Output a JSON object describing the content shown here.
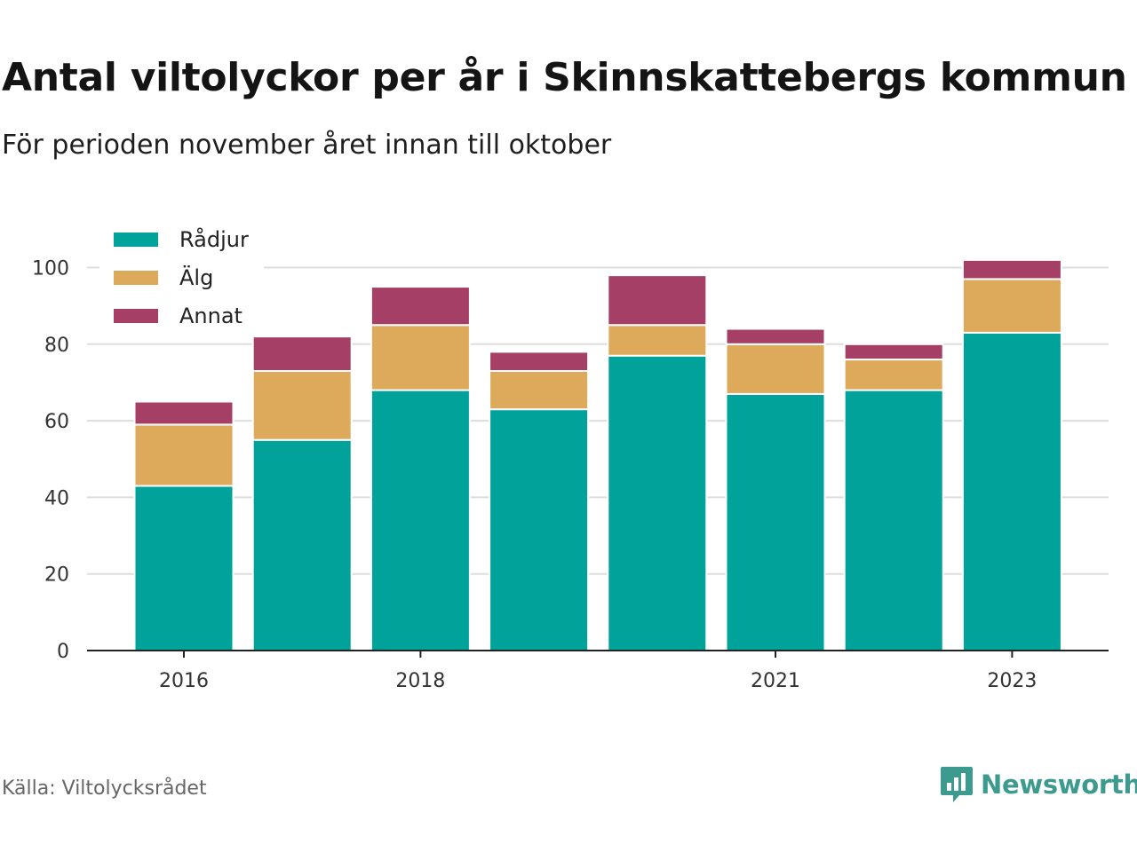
{
  "header": {
    "title": "Antal viltolyckor per år i Skinnskattebergs kommun",
    "subtitle": "För perioden november året innan till oktober"
  },
  "footer": {
    "source": "Källa: Viltolycksrådet",
    "brand": "Newsworthy",
    "brand_icon": "bar-chart-speech-bubble-icon",
    "brand_color": "#3d9a8f"
  },
  "chart_data": {
    "type": "bar",
    "stacked": true,
    "title": "Antal viltolyckor per år i Skinnskattebergs kommun",
    "subtitle": "För perioden november året innan till oktober",
    "x": [
      2016,
      2017,
      2018,
      2019,
      2020,
      2021,
      2022,
      2023
    ],
    "x_tick_labels": [
      "2016",
      "2018",
      "2021",
      "2023"
    ],
    "x_tick_values": [
      2016,
      2018,
      2021,
      2023
    ],
    "xlabel": "",
    "ylabel": "",
    "ylim": [
      0,
      105
    ],
    "y_ticks": [
      0,
      20,
      40,
      60,
      80,
      100
    ],
    "grid": true,
    "legend_position": "top-left",
    "series": [
      {
        "name": "Rådjur",
        "color": "#00a29a",
        "values": [
          43,
          55,
          68,
          63,
          77,
          67,
          68,
          83
        ]
      },
      {
        "name": "Älg",
        "color": "#dcaa5a",
        "values": [
          16,
          18,
          17,
          10,
          8,
          13,
          8,
          14
        ]
      },
      {
        "name": "Annat",
        "color": "#a63f66",
        "values": [
          6,
          9,
          10,
          5,
          13,
          4,
          4,
          5
        ]
      }
    ]
  }
}
